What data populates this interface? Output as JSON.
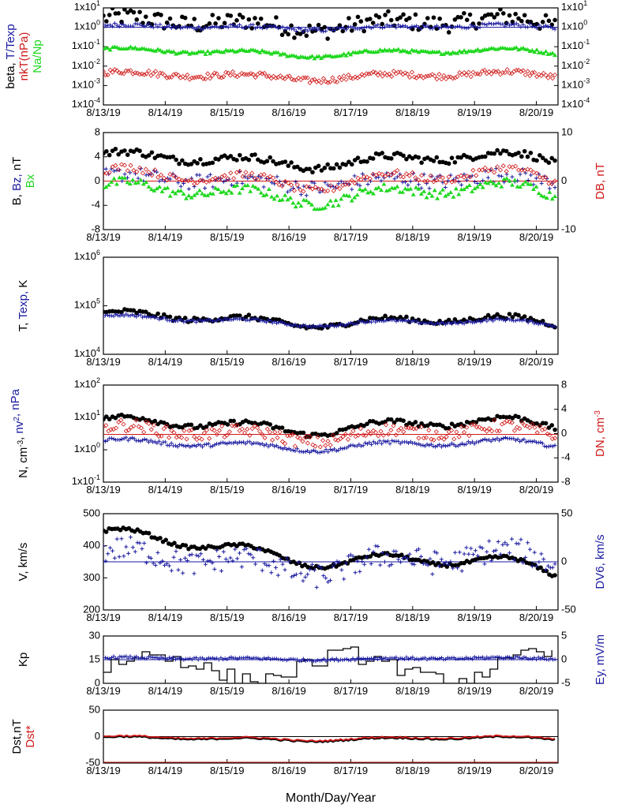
{
  "colors": {
    "black": "#000000",
    "blue": "#1a1aa0",
    "red": "#d01818",
    "green": "#1fd81f",
    "axis": "#000000"
  },
  "x_ticks": [
    "8/13/19",
    "8/14/19",
    "8/15/19",
    "8/16/19",
    "8/17/19",
    "8/18/19",
    "8/19/19",
    "8/20/19"
  ],
  "x_label": "Month/Day/Year",
  "chart_data": [
    {
      "id": "p1",
      "type": "scatter",
      "left_label_parts": [
        {
          "text": "beta, ",
          "color": "black"
        },
        {
          "text": "T/Texp",
          "color": "blue"
        }
      ],
      "left_label_parts2": [
        {
          "text": "nkT(nPa)",
          "color": "red"
        }
      ],
      "left_label_parts3": [
        {
          "text": "Na/Np",
          "color": "green"
        }
      ],
      "yscale": "log",
      "ylim": [
        0.0001,
        10
      ],
      "yticks_left": [
        "1x10^1",
        "1x10^0",
        "1x10^-1",
        "1x10^-2",
        "1x10^-3",
        "1x10^-4"
      ],
      "yticks_right": [
        "1x10^1",
        "1x10^0",
        "1x10^-1",
        "1x10^-2",
        "1x10^-3",
        "1x10^-4"
      ],
      "reference_line": 1,
      "series": []
    },
    {
      "id": "p2",
      "type": "scatter",
      "left_label_parts": [
        {
          "text": "B, ",
          "color": "black"
        },
        {
          "text": "Bz, ",
          "color": "blue"
        },
        {
          "text": "nT",
          "color": "black"
        }
      ],
      "left_label_parts2": [
        {
          "text": "Bx",
          "color": "green"
        }
      ],
      "right_label": "DB, nT",
      "yscale": "linear",
      "ylim": [
        -8,
        8
      ],
      "yticks_left": [
        "8",
        "4",
        "0",
        "-4",
        "-8"
      ],
      "ylim_right": [
        -10,
        10
      ],
      "yticks_right": [
        "10",
        "0",
        "-10"
      ],
      "reference_line": 0,
      "series": []
    },
    {
      "id": "p3",
      "type": "scatter",
      "left_label_parts": [
        {
          "text": "T, ",
          "color": "black"
        },
        {
          "text": "Texp, ",
          "color": "blue"
        },
        {
          "text": "K",
          "color": "black"
        }
      ],
      "yscale": "log",
      "ylim": [
        10000,
        1000000
      ],
      "yticks_left": [
        "1x10^6",
        "1x10^5",
        "1x10^4"
      ],
      "series": []
    },
    {
      "id": "p4",
      "type": "scatter",
      "left_label_parts": [
        {
          "text": "N, cm^-3, ",
          "color": "black"
        },
        {
          "text": "nv^2, nPa",
          "color": "blue"
        }
      ],
      "right_label": "DN, cm^-3",
      "yscale": "log",
      "ylim": [
        0.1,
        100
      ],
      "yticks_left": [
        "1x10^2",
        "1x10^1",
        "1x10^0",
        "1x10^-1"
      ],
      "ylim_right": [
        -8,
        8
      ],
      "yticks_right": [
        "8",
        "4",
        "0",
        "-4",
        "-8"
      ],
      "series": []
    },
    {
      "id": "p5",
      "type": "scatter",
      "left_label_parts": [
        {
          "text": "V, km/s",
          "color": "black"
        }
      ],
      "right_label": "DV6, km/s",
      "yscale": "linear",
      "ylim": [
        200,
        500
      ],
      "yticks_left": [
        "500",
        "400",
        "300",
        "200"
      ],
      "ylim_right": [
        -50,
        50
      ],
      "yticks_right": [
        "50",
        "0",
        "-50"
      ],
      "series": []
    },
    {
      "id": "p6",
      "type": "line",
      "left_label_parts": [
        {
          "text": "Kp",
          "color": "black"
        }
      ],
      "right_label": "Ey,  mV/m",
      "yscale": "linear",
      "ylim": [
        0,
        30
      ],
      "yticks_left": [
        "30",
        "15",
        "0"
      ],
      "ylim_right": [
        -5,
        5
      ],
      "yticks_right": [
        "5",
        "0",
        "-5"
      ],
      "series": []
    },
    {
      "id": "p7",
      "type": "line",
      "left_label_parts": [
        {
          "text": "Dst,nT",
          "color": "black"
        }
      ],
      "left_label_parts2": [
        {
          "text": "Dst*",
          "color": "red"
        }
      ],
      "yscale": "linear",
      "ylim": [
        -50,
        50
      ],
      "yticks_left": [
        "50",
        "0",
        "-50"
      ],
      "reference_line": 0,
      "series": []
    }
  ]
}
